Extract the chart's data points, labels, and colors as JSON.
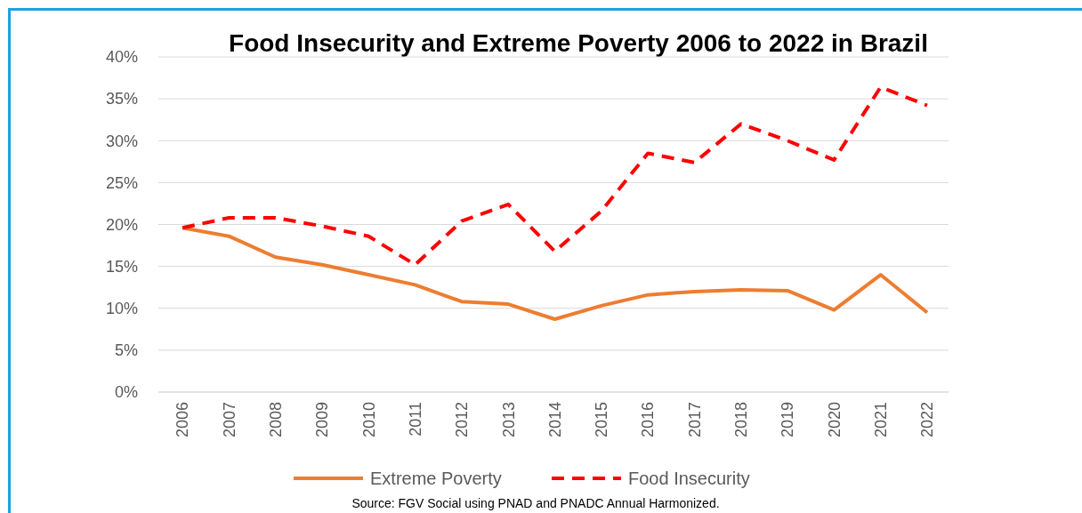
{
  "chart_data": {
    "type": "line",
    "title": "Food Insecurity and Extreme Poverty 2006 to 2022 in Brazil",
    "categories": [
      "2006",
      "2007",
      "2008",
      "2009",
      "2010",
      "2011",
      "2012",
      "2013",
      "2014",
      "2015",
      "2016",
      "2017",
      "2018",
      "2019",
      "2020",
      "2021",
      "2022"
    ],
    "series": [
      {
        "name": "Extreme Poverty",
        "color": "#ed7d31",
        "line_style": "solid",
        "values": [
          19.6,
          18.6,
          16.1,
          15.2,
          14.0,
          12.8,
          10.8,
          10.5,
          8.7,
          10.3,
          11.6,
          12.0,
          12.2,
          12.1,
          9.8,
          14.0,
          9.5
        ]
      },
      {
        "name": "Food Insecurity",
        "color": "#ff0000",
        "line_style": "dashed",
        "values": [
          19.6,
          20.8,
          20.8,
          19.8,
          18.6,
          15.2,
          20.4,
          22.4,
          16.8,
          21.6,
          28.5,
          27.4,
          32.0,
          30.0,
          27.7,
          36.4,
          34.2
        ]
      }
    ],
    "ylim": [
      0,
      40
    ],
    "yticks": [
      {
        "value": 0,
        "label": "0%"
      },
      {
        "value": 5,
        "label": "5%"
      },
      {
        "value": 10,
        "label": "10%"
      },
      {
        "value": 15,
        "label": "15%"
      },
      {
        "value": 20,
        "label": "20%"
      },
      {
        "value": 25,
        "label": "25%"
      },
      {
        "value": 30,
        "label": "30%"
      },
      {
        "value": 35,
        "label": "35%"
      },
      {
        "value": 40,
        "label": "40%"
      }
    ],
    "grid": "y",
    "legend": "bottom",
    "annotations": [
      "Source: FGV Social using PNAD and PNADC Annual Harmonized."
    ]
  }
}
